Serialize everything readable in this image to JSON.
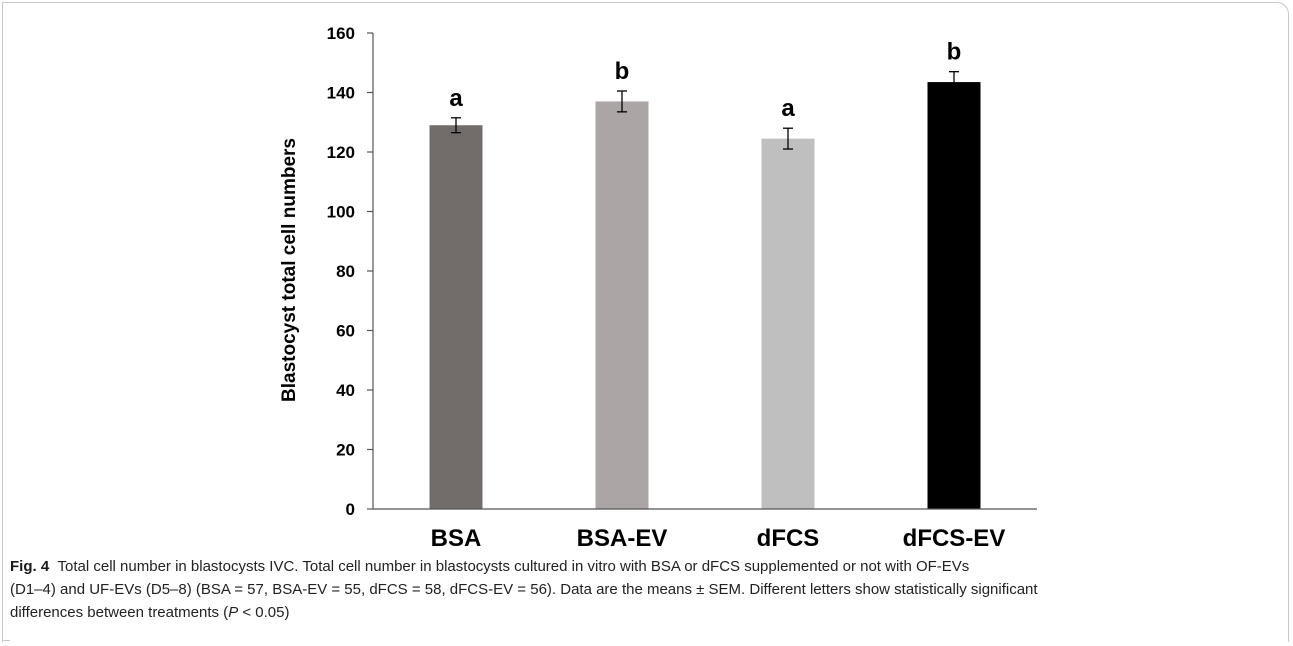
{
  "chart_data": {
    "type": "bar",
    "categories": [
      "BSA",
      "BSA-EV",
      "dFCS",
      "dFCS-EV"
    ],
    "values": [
      129,
      137,
      124.5,
      143.5
    ],
    "errors": [
      2.5,
      3.5,
      3.5,
      3.5
    ],
    "significance_letters": [
      "a",
      "b",
      "a",
      "b"
    ],
    "bar_colors": [
      "#726d6b",
      "#aba6a5",
      "#bfbfbf",
      "#000000"
    ],
    "xlabel": "",
    "ylabel": "Blastocyst total cell numbers",
    "ylim": [
      0,
      160
    ],
    "yticks": [
      "0",
      "20",
      "40",
      "60",
      "80",
      "100",
      "120",
      "140",
      "160"
    ],
    "grid": false
  },
  "caption": {
    "label": "Fig. 4",
    "title": "Total cell number in blastocysts IVC.",
    "text_line1": "Total cell number in blastocysts cultured in vitro with BSA or dFCS supplemented or not with OF-EVs",
    "text_line2": "(D1–4) and UF-EVs (D5–8) (BSA = 57, BSA-EV = 55, dFCS = 58, dFCS-EV = 56). Data are the means ± SEM. Different letters show statistically significant",
    "text_line3_pre": "differences between treatments (",
    "text_line3_p": "P",
    "text_line3_post": " < 0.05)"
  }
}
